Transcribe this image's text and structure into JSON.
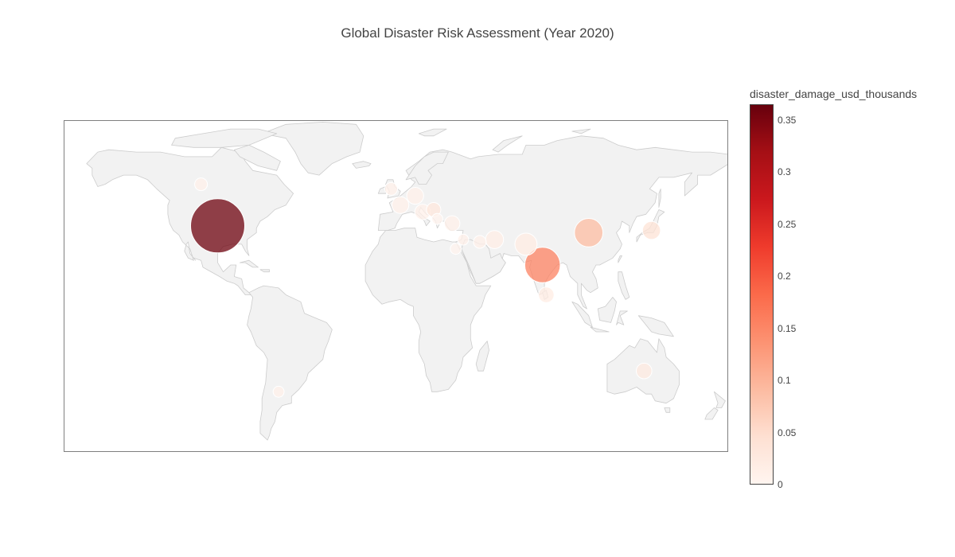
{
  "title": "Global Disaster Risk Assessment (Year 2020)",
  "colorbar": {
    "title": "disaster_damage_usd_thousands",
    "range": [
      0,
      0.365
    ],
    "ticks": [
      "0",
      "0.05",
      "0.1",
      "0.15",
      "0.2",
      "0.25",
      "0.3",
      "0.35"
    ],
    "tick_values": [
      0,
      0.05,
      0.1,
      0.15,
      0.2,
      0.25,
      0.3,
      0.35
    ],
    "colors": [
      "#fff5f0",
      "#fee0d2",
      "#fcbba1",
      "#fc9272",
      "#fb6a4a",
      "#ef3b2c",
      "#cb181d",
      "#a50f15",
      "#67000d"
    ]
  },
  "map": {
    "land_color": "#f2f2f2",
    "coast_color": "#cccccc",
    "frame_color": "#7f7f7f"
  },
  "chart_data": {
    "type": "scatter_geo",
    "title": "Global Disaster Risk Assessment (Year 2020)",
    "projection": "equirectangular",
    "color_variable": "disaster_damage_usd_thousands",
    "color_range": [
      0,
      0.365
    ],
    "points": [
      {
        "lon": -97,
        "lat": 38,
        "value": 0.36,
        "size": 0.36
      },
      {
        "lon": 79,
        "lat": 21,
        "value": 0.155,
        "size": 0.155
      },
      {
        "lon": 104,
        "lat": 35,
        "value": 0.09,
        "size": 0.1
      },
      {
        "lon": 138,
        "lat": 36,
        "value": 0.04,
        "size": 0.04
      },
      {
        "lon": 70,
        "lat": 30,
        "value": 0.02,
        "size": 0.06
      },
      {
        "lon": 53,
        "lat": 32,
        "value": 0.015,
        "size": 0.04
      },
      {
        "lon": 81,
        "lat": 8,
        "value": 0.02,
        "size": 0.03
      },
      {
        "lon": 134,
        "lat": -25,
        "value": 0.025,
        "size": 0.03
      },
      {
        "lon": -106,
        "lat": 56,
        "value": 0.01,
        "size": 0.02
      },
      {
        "lon": 2,
        "lat": 47,
        "value": 0.01,
        "size": 0.035
      },
      {
        "lon": 10,
        "lat": 51,
        "value": 0.01,
        "size": 0.035
      },
      {
        "lon": 14,
        "lat": 44,
        "value": 0.01,
        "size": 0.03
      },
      {
        "lon": 20,
        "lat": 45,
        "value": 0.03,
        "size": 0.025
      },
      {
        "lon": 30,
        "lat": 39,
        "value": 0.01,
        "size": 0.03
      },
      {
        "lon": -3,
        "lat": 54,
        "value": 0.01,
        "size": 0.02
      },
      {
        "lon": 45,
        "lat": 31,
        "value": 0.01,
        "size": 0.02
      },
      {
        "lon": 36,
        "lat": 32,
        "value": 0.01,
        "size": 0.015
      },
      {
        "lon": 32,
        "lat": 28,
        "value": 0.005,
        "size": 0.015
      },
      {
        "lon": 22,
        "lat": 41,
        "value": 0.005,
        "size": 0.015
      },
      {
        "lon": -64,
        "lat": -34,
        "value": 0.01,
        "size": 0.015
      }
    ]
  }
}
